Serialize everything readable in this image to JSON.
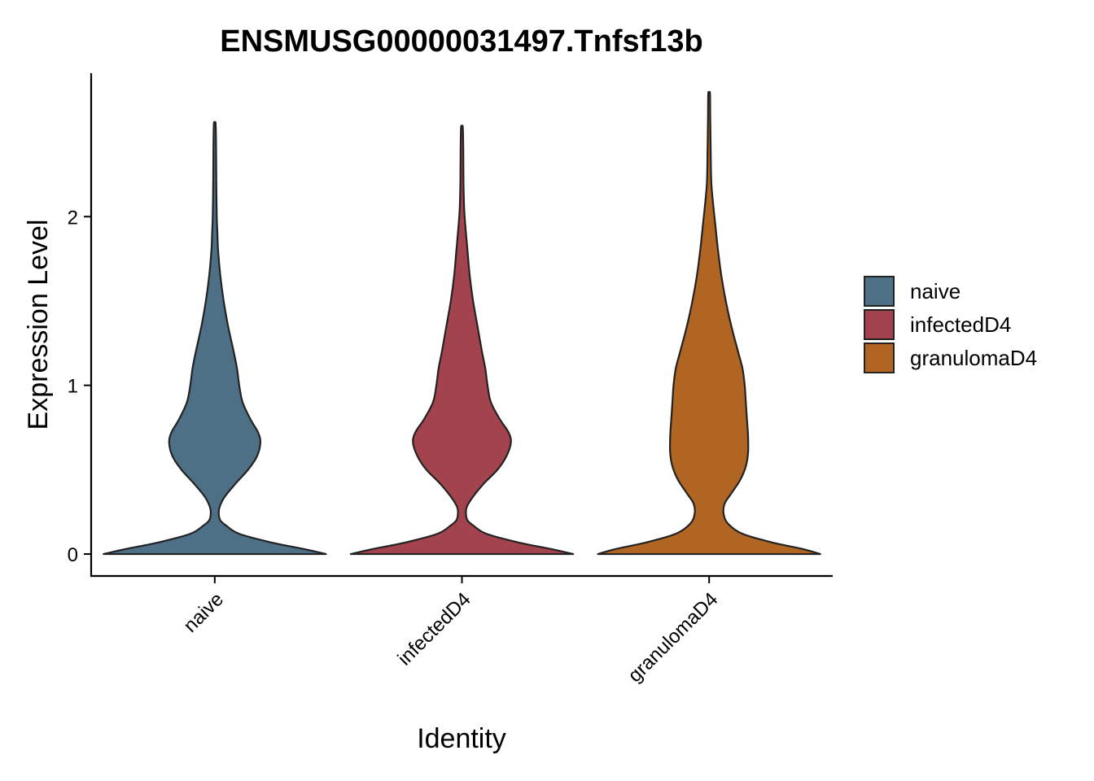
{
  "chart_data": {
    "type": "violin",
    "title": "ENSMUSG00000031497.Tnfsf13b",
    "xlabel": "Identity",
    "ylabel": "Expression Level",
    "categories": [
      "naive",
      "infectedD4",
      "granulomaD4"
    ],
    "colors": [
      "#4d7087",
      "#a2434d",
      "#b06522"
    ],
    "yticks": [
      0,
      1,
      2
    ],
    "ylim": [
      -0.13,
      2.85
    ],
    "legend": {
      "position": "right",
      "entries": [
        "naive",
        "infectedD4",
        "granulomaD4"
      ]
    },
    "series": [
      {
        "name": "naive",
        "min": 0,
        "max": 2.55,
        "density_profile": [
          [
            0.0,
            0.5
          ],
          [
            0.03,
            0.4
          ],
          [
            0.07,
            0.25
          ],
          [
            0.12,
            0.11
          ],
          [
            0.17,
            0.05
          ],
          [
            0.2,
            0.025
          ],
          [
            0.24,
            0.018
          ],
          [
            0.28,
            0.022
          ],
          [
            0.34,
            0.045
          ],
          [
            0.42,
            0.095
          ],
          [
            0.5,
            0.15
          ],
          [
            0.58,
            0.19
          ],
          [
            0.66,
            0.205
          ],
          [
            0.72,
            0.195
          ],
          [
            0.8,
            0.16
          ],
          [
            0.9,
            0.125
          ],
          [
            1.0,
            0.11
          ],
          [
            1.1,
            0.1
          ],
          [
            1.2,
            0.085
          ],
          [
            1.35,
            0.06
          ],
          [
            1.5,
            0.04
          ],
          [
            1.65,
            0.025
          ],
          [
            1.8,
            0.015
          ],
          [
            1.9,
            0.012
          ],
          [
            2.0,
            0.009
          ],
          [
            2.2,
            0.007
          ],
          [
            2.4,
            0.006
          ],
          [
            2.55,
            0.004
          ]
        ]
      },
      {
        "name": "infectedD4",
        "min": 0,
        "max": 2.53,
        "density_profile": [
          [
            0.0,
            0.5
          ],
          [
            0.03,
            0.4
          ],
          [
            0.07,
            0.25
          ],
          [
            0.12,
            0.11
          ],
          [
            0.17,
            0.05
          ],
          [
            0.2,
            0.025
          ],
          [
            0.24,
            0.018
          ],
          [
            0.28,
            0.022
          ],
          [
            0.34,
            0.05
          ],
          [
            0.42,
            0.1
          ],
          [
            0.5,
            0.16
          ],
          [
            0.58,
            0.2
          ],
          [
            0.66,
            0.22
          ],
          [
            0.72,
            0.21
          ],
          [
            0.8,
            0.17
          ],
          [
            0.9,
            0.13
          ],
          [
            1.0,
            0.115
          ],
          [
            1.1,
            0.105
          ],
          [
            1.2,
            0.09
          ],
          [
            1.35,
            0.07
          ],
          [
            1.5,
            0.05
          ],
          [
            1.65,
            0.035
          ],
          [
            1.8,
            0.025
          ],
          [
            1.95,
            0.015
          ],
          [
            2.05,
            0.01
          ],
          [
            2.2,
            0.007
          ],
          [
            2.4,
            0.006
          ],
          [
            2.53,
            0.004
          ]
        ]
      },
      {
        "name": "granulomaD4",
        "min": 0,
        "max": 2.73,
        "density_profile": [
          [
            0.0,
            0.5
          ],
          [
            0.03,
            0.42
          ],
          [
            0.07,
            0.28
          ],
          [
            0.12,
            0.15
          ],
          [
            0.18,
            0.085
          ],
          [
            0.24,
            0.065
          ],
          [
            0.3,
            0.07
          ],
          [
            0.36,
            0.1
          ],
          [
            0.44,
            0.14
          ],
          [
            0.52,
            0.165
          ],
          [
            0.6,
            0.175
          ],
          [
            0.7,
            0.175
          ],
          [
            0.8,
            0.17
          ],
          [
            0.9,
            0.165
          ],
          [
            1.0,
            0.16
          ],
          [
            1.1,
            0.15
          ],
          [
            1.2,
            0.13
          ],
          [
            1.35,
            0.1
          ],
          [
            1.5,
            0.075
          ],
          [
            1.65,
            0.055
          ],
          [
            1.8,
            0.04
          ],
          [
            1.95,
            0.028
          ],
          [
            2.05,
            0.02
          ],
          [
            2.2,
            0.01
          ],
          [
            2.4,
            0.007
          ],
          [
            2.6,
            0.005
          ],
          [
            2.73,
            0.004
          ]
        ]
      }
    ]
  }
}
